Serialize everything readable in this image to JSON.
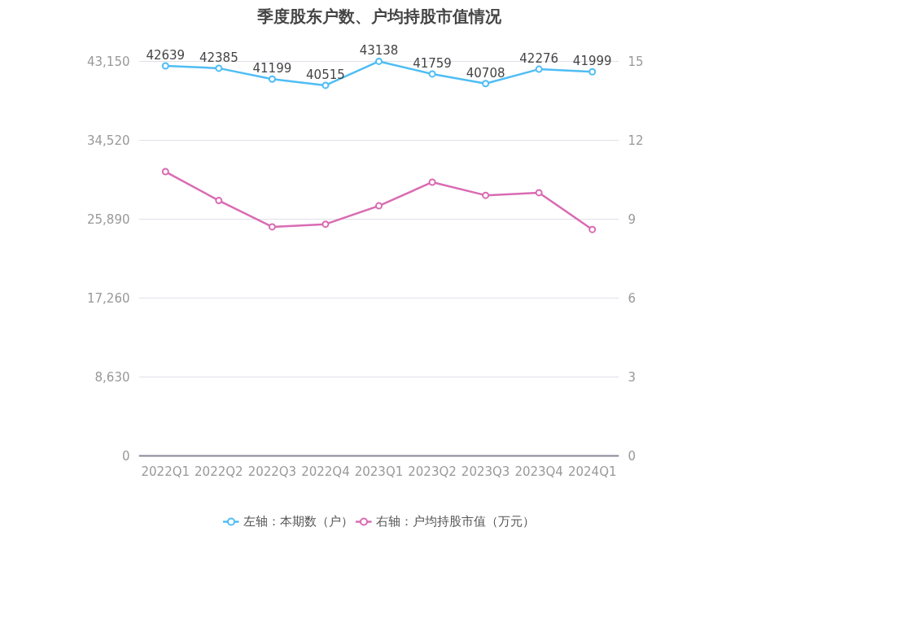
{
  "chart_data": {
    "type": "line",
    "title": "季度股东户数、户均持股市值情况",
    "categories": [
      "2022Q1",
      "2022Q2",
      "2022Q3",
      "2022Q4",
      "2023Q1",
      "2023Q2",
      "2023Q3",
      "2023Q4",
      "2024Q1"
    ],
    "series": [
      {
        "name": "左轴：本期数（户）",
        "color": "#4fbdf5",
        "values": [
          42639,
          42385,
          41199,
          40515,
          43138,
          41759,
          40708,
          42276,
          41999
        ],
        "value_labels": [
          "42639",
          "42385",
          "41199",
          "40515",
          "43138",
          "41759",
          "40708",
          "42276",
          "41999"
        ]
      },
      {
        "name": "右轴：户均持股市值（万元）",
        "color": "#d96bb3",
        "axis": "y2",
        "values": [
          10.8,
          9.7,
          8.7,
          8.8,
          9.5,
          10.4,
          9.9,
          10.0,
          8.6
        ]
      }
    ],
    "ylim": [
      0,
      43150
    ],
    "yticks": [
      0,
      {
        "value": 8630,
        "label": "8,630"
      },
      {
        "value": 17260,
        "label": "17,260"
      },
      {
        "value": 25890,
        "label": "25,890"
      },
      {
        "value": 34520,
        "label": "34,520"
      },
      {
        "value": 43150,
        "label": "43,150"
      }
    ],
    "y2lim": [
      0,
      15
    ],
    "y2ticks": [
      0,
      3,
      6,
      9,
      12,
      15
    ],
    "grid": "y",
    "legend": "bottom",
    "marker": "circle",
    "line_style": "solid"
  }
}
